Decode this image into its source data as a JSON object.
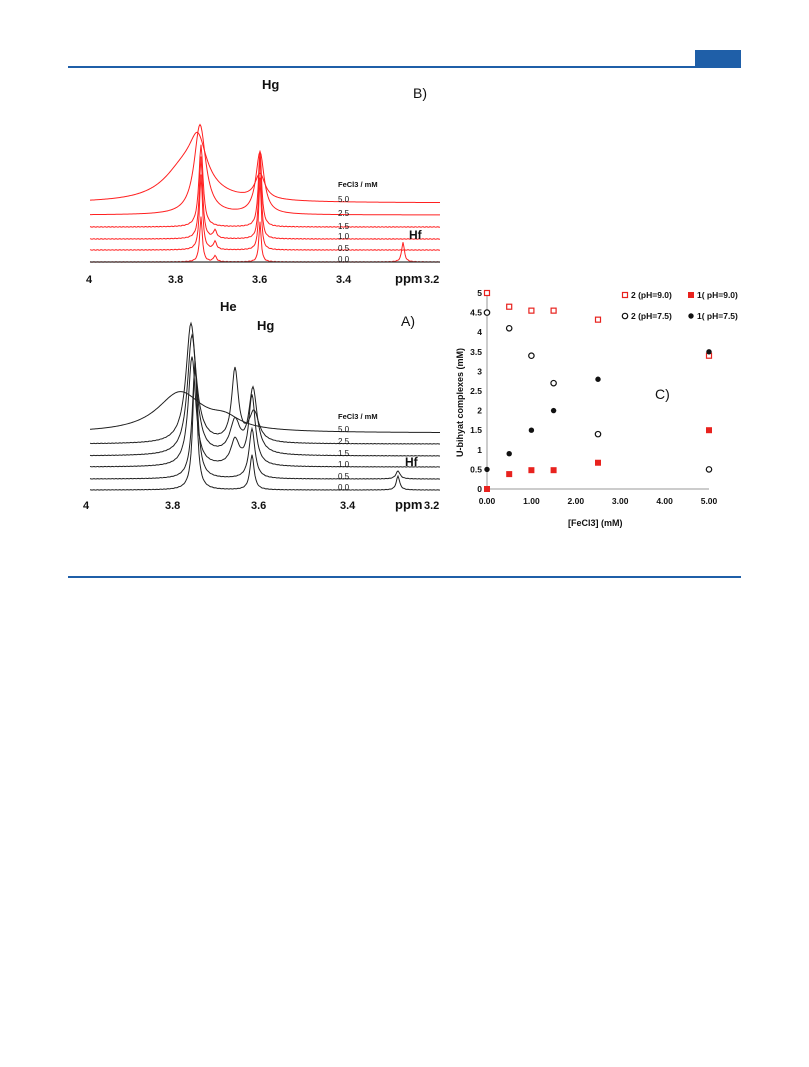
{
  "header": {
    "accent_color": "#1f5fa8"
  },
  "spectrum_b": {
    "panel_label": "B)",
    "peak_label_top": "Hg",
    "peak_label_small": "Hf",
    "conc_header": "FeCl3 / mM",
    "concentrations": [
      "5.0",
      "2.5",
      "1.5",
      "1.0",
      "0.5",
      "0.0"
    ],
    "x_ticks": [
      "4",
      "3.8",
      "3.6",
      "3.4",
      "3.2"
    ],
    "x_unit": "ppm",
    "line_color": "#ff2020"
  },
  "spectrum_a": {
    "panel_label": "A)",
    "peak_label_he": "He",
    "peak_label_hg": "Hg",
    "peak_label_small": "Hf",
    "conc_header": "FeCl3 / mM",
    "concentrations": [
      "5.0",
      "2.5",
      "1.5",
      "1.0",
      "0.5",
      "0.0"
    ],
    "x_ticks": [
      "4",
      "3.8",
      "3.6",
      "3.4",
      "3.2"
    ],
    "x_unit": "ppm",
    "line_color": "#202020"
  },
  "chart_data": {
    "type": "scatter",
    "panel_label": "C)",
    "xlabel": "[FeCl3] (mM)",
    "ylabel": "U-bihyat complexes (mM)",
    "xlim": [
      0,
      5
    ],
    "ylim": [
      0,
      5
    ],
    "x_tick_labels": [
      "0.00",
      "1.00",
      "2.00",
      "3.00",
      "4.00",
      "5.00"
    ],
    "y_tick_labels": [
      "0",
      "0.5",
      "1",
      "1.5",
      "2",
      "2.5",
      "3",
      "3.5",
      "4",
      "4.5",
      "5"
    ],
    "legend_position": "top-right",
    "series": [
      {
        "name": "2 (pH=9.0)",
        "marker": "open-square",
        "color": "#e8221e",
        "points": [
          [
            0,
            5.0
          ],
          [
            0.5,
            4.65
          ],
          [
            1.0,
            4.55
          ],
          [
            1.5,
            4.55
          ],
          [
            2.5,
            4.32
          ],
          [
            5.0,
            3.4
          ]
        ]
      },
      {
        "name": "1( pH=9.0)",
        "marker": "filled-square",
        "color": "#e8221e",
        "points": [
          [
            0,
            0
          ],
          [
            0.5,
            0.38
          ],
          [
            1.0,
            0.48
          ],
          [
            1.5,
            0.48
          ],
          [
            2.5,
            0.67
          ],
          [
            5.0,
            1.5
          ]
        ]
      },
      {
        "name": "2 (pH=7.5)",
        "marker": "open-circle",
        "color": "#111111",
        "points": [
          [
            0,
            4.5
          ],
          [
            0.5,
            4.1
          ],
          [
            1.0,
            3.4
          ],
          [
            1.5,
            2.7
          ],
          [
            2.5,
            1.4
          ],
          [
            5.0,
            0.5
          ]
        ]
      },
      {
        "name": "1( pH=7.5)",
        "marker": "filled-circle",
        "color": "#111111",
        "points": [
          [
            0,
            0.5
          ],
          [
            0.5,
            0.9
          ],
          [
            1.0,
            1.5
          ],
          [
            1.5,
            2.0
          ],
          [
            2.5,
            2.8
          ],
          [
            5.0,
            3.5
          ]
        ]
      }
    ]
  }
}
